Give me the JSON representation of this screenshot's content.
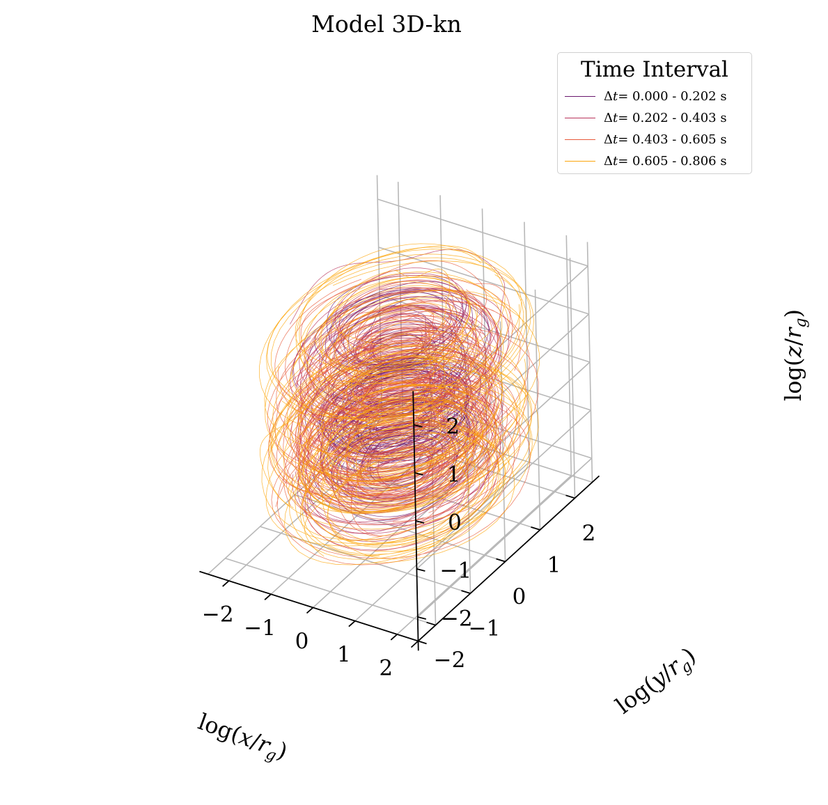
{
  "chart_data": {
    "type": "line",
    "projection": "3d",
    "title": "Model 3D-kn",
    "xlabel": "log(x/r_g)",
    "ylabel": "log(y/r_g)",
    "zlabel": "log(z/r_g)",
    "xlabel_parts": [
      "log(",
      "x",
      "/",
      "r",
      "g",
      ")"
    ],
    "ylabel_parts": [
      "log(",
      "y",
      "/",
      "r",
      "g",
      ")"
    ],
    "zlabel_parts": [
      "log(",
      "z",
      "/",
      "r",
      "g",
      ")"
    ],
    "xlim": [
      -2.5,
      2.5
    ],
    "ylim": [
      -2.5,
      2.5
    ],
    "zlim": [
      -2.5,
      2.5
    ],
    "x_ticks": [
      "−2",
      "−1",
      "0",
      "1",
      "2"
    ],
    "y_ticks": [
      "−2",
      "−1",
      "0",
      "1",
      "2"
    ],
    "z_ticks": [
      "−2",
      "−1",
      "0",
      "1",
      "2"
    ],
    "grid": true,
    "legend": {
      "title": "Time Interval",
      "placement": "top-right",
      "entries": [
        {
          "label": "Δt= 0.000 - 0.202 s",
          "symbol": "Δ",
          "var": "t",
          "text": "= 0.000 - 0.202 s",
          "color": "#6a176e"
        },
        {
          "label": "Δt= 0.202 - 0.403 s",
          "symbol": "Δ",
          "var": "t",
          "text": "= 0.202 - 0.403 s",
          "color": "#b8325a"
        },
        {
          "label": "Δt= 0.403 - 0.605 s",
          "symbol": "Δ",
          "var": "t",
          "text": "= 0.403 - 0.605 s",
          "color": "#e7593a"
        },
        {
          "label": "Δt= 0.605 - 0.806 s",
          "symbol": "Δ",
          "var": "t",
          "text": "= 0.605 - 0.806 s",
          "color": "#fca50a"
        }
      ]
    },
    "series": [
      {
        "name": "Δt= 0.000 - 0.202 s",
        "color": "#6a176e",
        "radius_range": [
          0.4,
          1.6
        ],
        "z_range": [
          -1.3,
          1.8
        ]
      },
      {
        "name": "Δt= 0.202 - 0.403 s",
        "color": "#b8325a",
        "radius_range": [
          0.5,
          2.0
        ],
        "z_range": [
          -1.6,
          2.0
        ]
      },
      {
        "name": "Δt= 0.403 - 0.605 s",
        "color": "#e7593a",
        "radius_range": [
          0.6,
          2.3
        ],
        "z_range": [
          -1.8,
          2.1
        ]
      },
      {
        "name": "Δt= 0.605 - 0.806 s",
        "color": "#fca50a",
        "radius_range": [
          0.6,
          2.5
        ],
        "z_range": [
          -1.9,
          2.2
        ]
      }
    ]
  }
}
